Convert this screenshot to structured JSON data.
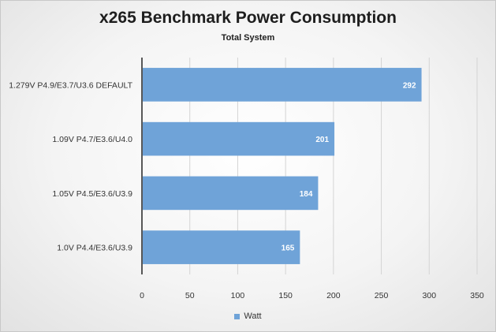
{
  "chart_data": {
    "type": "bar",
    "orientation": "horizontal",
    "title": "x265 Benchmark Power Consumption",
    "subtitle": "Total System",
    "categories": [
      "1.279V P4.9/E3.7/U3.6 DEFAULT",
      "1.09V P4.7/E3.6/U4.0",
      "1.05V P4.5/E3.6/U3.9",
      "1.0V P4.4/E3.6/U3.9"
    ],
    "series": [
      {
        "name": "Watt",
        "values": [
          292,
          201,
          184,
          165
        ]
      }
    ],
    "xlim": [
      0,
      350
    ],
    "xticks": [
      0,
      50,
      100,
      150,
      200,
      250,
      300,
      350
    ],
    "xlabel": "",
    "ylabel": "",
    "grid": "vertical",
    "legend": "bottom",
    "data_labels": "inside-end",
    "colors": {
      "bar": "#6fa3d8",
      "grid": "#d4d4d4",
      "axis": "#222222"
    }
  }
}
